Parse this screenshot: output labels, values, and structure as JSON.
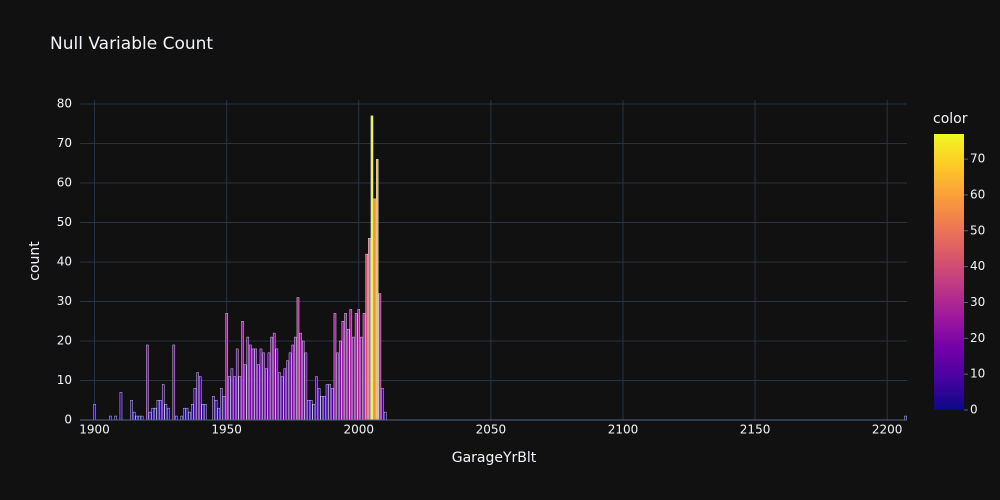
{
  "chart_data": {
    "type": "bar",
    "title": "Null Variable Count",
    "x_label": "GarageYrBlt",
    "y_label": "count",
    "x": [
      1900,
      1906,
      1908,
      1910,
      1914,
      1915,
      1916,
      1917,
      1918,
      1920,
      1921,
      1922,
      1923,
      1924,
      1925,
      1926,
      1927,
      1928,
      1930,
      1931,
      1933,
      1934,
      1935,
      1936,
      1937,
      1938,
      1939,
      1940,
      1941,
      1942,
      1945,
      1946,
      1947,
      1948,
      1949,
      1950,
      1951,
      1952,
      1953,
      1954,
      1955,
      1956,
      1957,
      1958,
      1959,
      1960,
      1961,
      1962,
      1963,
      1964,
      1965,
      1966,
      1967,
      1968,
      1969,
      1970,
      1971,
      1972,
      1973,
      1974,
      1975,
      1976,
      1977,
      1978,
      1979,
      1980,
      1981,
      1982,
      1983,
      1984,
      1985,
      1986,
      1987,
      1988,
      1989,
      1990,
      1991,
      1992,
      1993,
      1994,
      1995,
      1996,
      1997,
      1998,
      1999,
      2000,
      2001,
      2002,
      2003,
      2004,
      2005,
      2006,
      2007,
      2008,
      2009,
      2010,
      2207
    ],
    "values": [
      4,
      1,
      1,
      7,
      5,
      2,
      1,
      1,
      1,
      19,
      2,
      3,
      3,
      5,
      5,
      9,
      4,
      3,
      19,
      1,
      1,
      3,
      3,
      2,
      4,
      8,
      12,
      11,
      4,
      4,
      6,
      5,
      3,
      8,
      6,
      27,
      11,
      13,
      11,
      18,
      11,
      25,
      14,
      21,
      19,
      18,
      18,
      14,
      18,
      17,
      13,
      17,
      21,
      22,
      18,
      12,
      11,
      13,
      15,
      17,
      19,
      21,
      31,
      22,
      20,
      17,
      5,
      5,
      4,
      11,
      8,
      6,
      6,
      9,
      9,
      8,
      27,
      17,
      20,
      25,
      27,
      23,
      28,
      21,
      27,
      28,
      21,
      27,
      42,
      46,
      77,
      56,
      66,
      32,
      8,
      2,
      1
    ],
    "xlim": [
      1894.5,
      2207.5
    ],
    "xticks": [
      1900,
      1950,
      2000,
      2050,
      2100,
      2150,
      2200
    ],
    "ylim": [
      0,
      81
    ],
    "yticks": [
      0,
      10,
      20,
      30,
      40,
      50,
      60,
      70,
      80
    ],
    "grid": true,
    "colorscale": [
      "#0d0887",
      "#46039f",
      "#7201a8",
      "#9c179e",
      "#bd3786",
      "#d8576b",
      "#ed7953",
      "#fb9f3a",
      "#fdca26",
      "#f0f921"
    ],
    "colorbar": {
      "title": "color",
      "range": [
        0,
        77
      ],
      "ticks": [
        0,
        10,
        20,
        30,
        40,
        50,
        60,
        70
      ]
    }
  }
}
